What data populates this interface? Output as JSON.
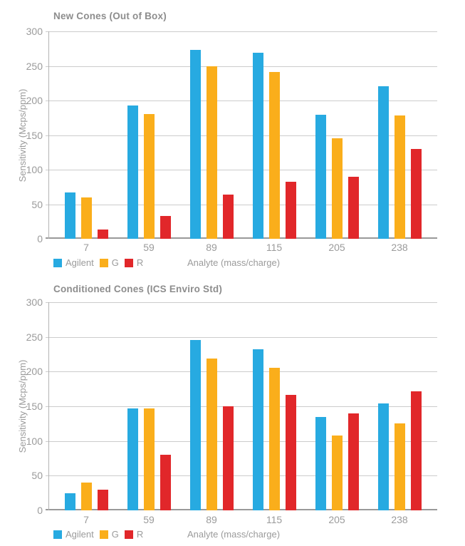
{
  "palette": {
    "agilent": "#27AAE1",
    "g": "#FAAE1B",
    "r": "#E1272A",
    "grid": "#CCCCCC",
    "axis_line": "#B3B3B3",
    "baseline": "#999999",
    "title_color": "#8D8D8D",
    "label_color": "#9B9B9B"
  },
  "chart_data": [
    {
      "type": "bar",
      "title": "New Cones (Out of Box)",
      "xlabel": "Analyte (mass/charge)",
      "ylabel": "Sensitivity (Mcps/ppm)",
      "ylim": [
        0,
        300
      ],
      "ytick_step": 50,
      "grid": true,
      "legend_position": "bottom-left",
      "categories": [
        "7",
        "59",
        "89",
        "115",
        "205",
        "238"
      ],
      "series": [
        {
          "name": "Agilent",
          "color": "#27AAE1",
          "values": [
            67,
            193,
            273,
            269,
            179,
            221
          ]
        },
        {
          "name": "G",
          "color": "#FAAE1B",
          "values": [
            60,
            180,
            249,
            241,
            145,
            178
          ]
        },
        {
          "name": "R",
          "color": "#E1272A",
          "values": [
            13,
            33,
            64,
            82,
            90,
            130
          ]
        }
      ]
    },
    {
      "type": "bar",
      "title": "Conditioned Cones (ICS Enviro Std)",
      "xlabel": "Analyte (mass/charge)",
      "ylabel": "Sensitivity (Mcps/ppm)",
      "ylim": [
        0,
        300
      ],
      "ytick_step": 50,
      "grid": true,
      "legend_position": "bottom-left",
      "categories": [
        "7",
        "59",
        "89",
        "115",
        "205",
        "238"
      ],
      "series": [
        {
          "name": "Agilent",
          "color": "#27AAE1",
          "values": [
            25,
            147,
            246,
            232,
            135,
            154
          ]
        },
        {
          "name": "G",
          "color": "#FAAE1B",
          "values": [
            40,
            147,
            219,
            205,
            108,
            125
          ]
        },
        {
          "name": "R",
          "color": "#E1272A",
          "values": [
            30,
            80,
            150,
            166,
            140,
            172
          ]
        }
      ]
    }
  ]
}
